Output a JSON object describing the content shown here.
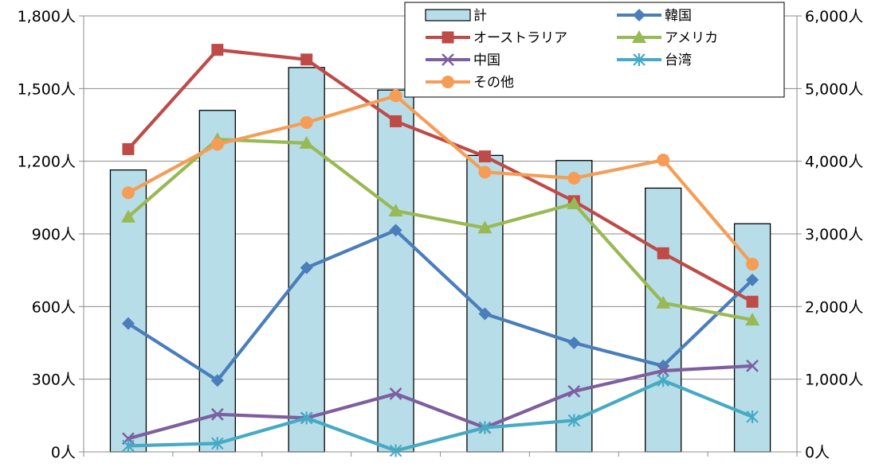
{
  "chart_data": {
    "type": "bar",
    "categories": [
      "",
      "",
      "",
      "",
      "",
      "",
      "",
      ""
    ],
    "bar_series": {
      "name": "計",
      "axis": "right",
      "color": "#b7dde8",
      "values": [
        3880,
        4700,
        5290,
        4980,
        4080,
        4010,
        3630,
        3140
      ]
    },
    "line_series": [
      {
        "name": "韓国",
        "axis": "left",
        "color": "#4a7ebb",
        "marker": "diamond",
        "values": [
          530,
          295,
          760,
          915,
          570,
          450,
          355,
          710
        ]
      },
      {
        "name": "オーストラリア",
        "axis": "left",
        "color": "#be4b48",
        "marker": "square",
        "values": [
          1250,
          1660,
          1620,
          1365,
          1220,
          1035,
          820,
          620
        ]
      },
      {
        "name": "アメリカ",
        "axis": "left",
        "color": "#98b954",
        "marker": "triangle",
        "values": [
          970,
          1290,
          1275,
          995,
          925,
          1025,
          615,
          545
        ]
      },
      {
        "name": "中国",
        "axis": "left",
        "color": "#7d5fa0",
        "marker": "x",
        "values": [
          55,
          155,
          140,
          240,
          100,
          250,
          335,
          355
        ]
      },
      {
        "name": "台湾",
        "axis": "left",
        "color": "#46aac4",
        "marker": "star",
        "values": [
          25,
          35,
          140,
          5,
          100,
          130,
          295,
          145
        ]
      },
      {
        "name": "その他",
        "axis": "left",
        "color": "#f59d56",
        "marker": "circle",
        "values": [
          1070,
          1270,
          1360,
          1470,
          1155,
          1130,
          1205,
          775
        ]
      }
    ],
    "left_axis": {
      "ylim": [
        0,
        1800
      ],
      "ticks": [
        0,
        300,
        600,
        900,
        1200,
        1500,
        1800
      ],
      "tick_labels": [
        "0人",
        "300人",
        "600人",
        "900人",
        "1,200人",
        "1,500人",
        "1,800人"
      ]
    },
    "right_axis": {
      "ylim": [
        0,
        6000
      ],
      "ticks": [
        0,
        1000,
        2000,
        3000,
        4000,
        5000,
        6000
      ],
      "tick_labels": [
        "0人",
        "1,000人",
        "2,000人",
        "3,000人",
        "4,000人",
        "5,000人",
        "6,000人"
      ]
    },
    "grid": true,
    "legend_placement": "top-right"
  }
}
